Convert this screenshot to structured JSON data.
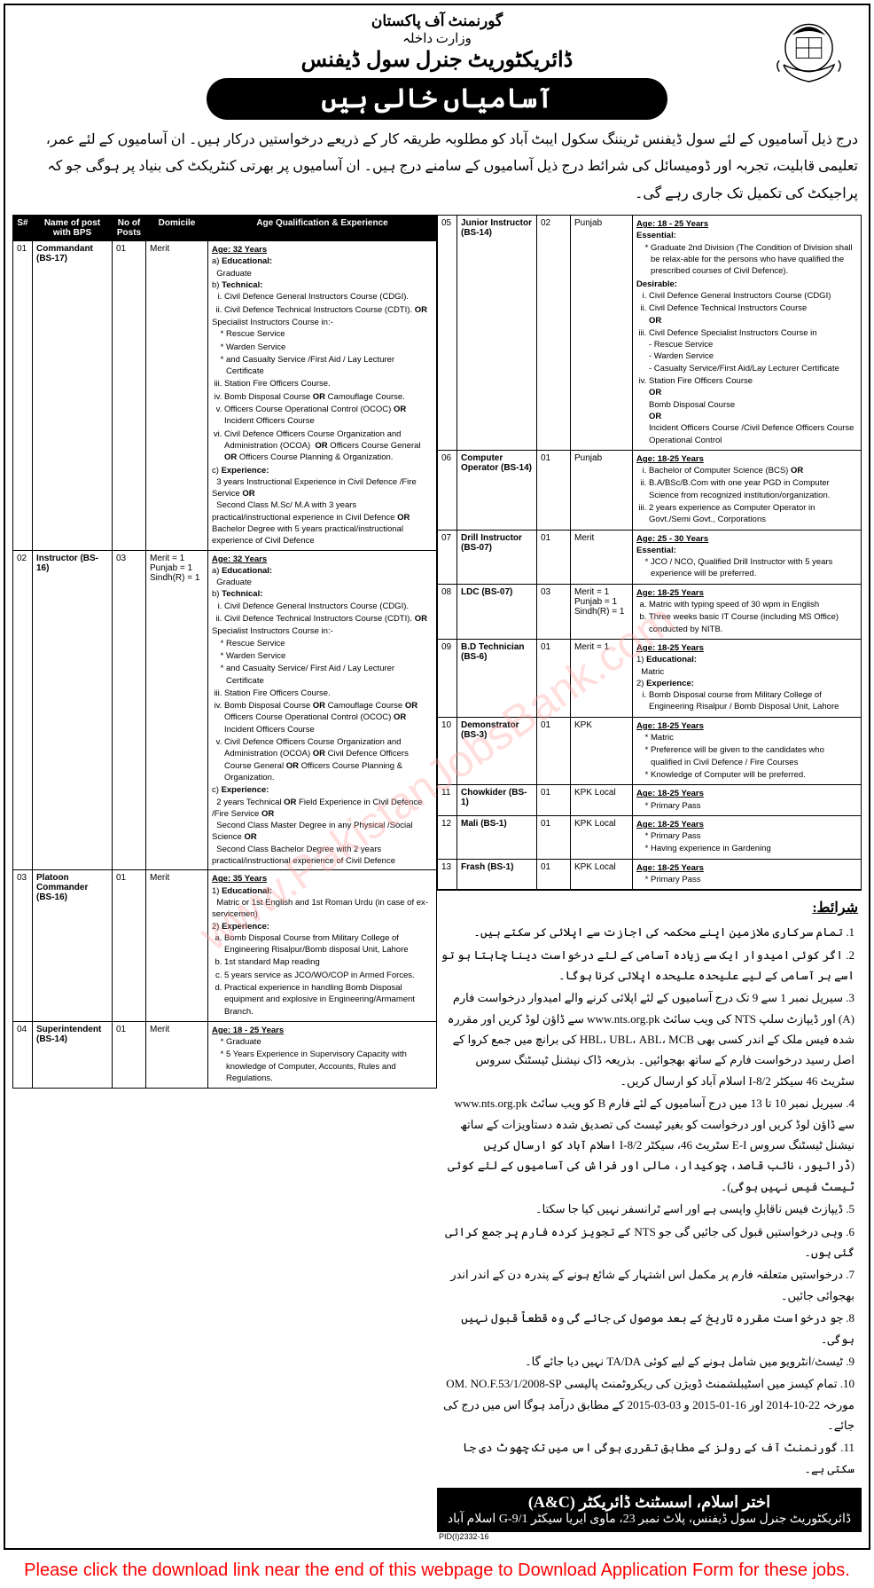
{
  "watermark": "www.PakistanJobsBank.com",
  "header": {
    "govt": "گورنمنٹ آف پاکستان",
    "ministry": "وزارت داخلہ",
    "directorate": "ڈائریکٹوریٹ جنرل سول ڈیفنس",
    "banner": "آسامیاں خالی ہیں"
  },
  "intro": "درج ذیل آسامیوں کے لئے سول ڈیفنس ٹریننگ سکول ایبٹ آباد کو مطلوبہ طریقہ کار کے ذریعے درخواستیں درکار ہیں۔ ان آسامیوں کے لئے عمر، تعلیمی قابلیت، تجربہ اور ڈومیسائل کی شرائط درج ذیل آسامیوں کے سامنے درج ہیں۔ ان آسامیوں پر بھرتی کنٹریکٹ کی بنیاد پر ہوگی جو کہ پراجیکٹ کی تکمیل تک جاری رہے گی۔",
  "table_headers": {
    "sn": "S#",
    "post": "Name of post with BPS",
    "num": "No of Posts",
    "dom": "Domicile",
    "qual": "Age Qualification & Experience"
  },
  "jobs_left": [
    {
      "sn": "01",
      "post": "Commandant (BS-17)",
      "num": "01",
      "dom": "Merit",
      "qual": "<span class='age'>Age: 32 Years</span><br>a) <span class='hd'>Educational:</span><br>&nbsp;&nbsp;Graduate<br>b) <span class='hd'>Technical:</span><ol type='i'><li>Civil Defence General Instructors Course (CDGI).</li><li>Civil Defence Technical Instructors Course (CDTI). <b>OR</b></li></ol>Specialist Instructors Course in:-<ul class='sub'><li>Rescue Service</li><li>Warden Service</li><li>and Casualty Service /First Aid / Lay Lecturer Certificate</li></ul><ol type='i' start='3'><li>Station Fire Officers Course.</li><li>Bomb Disposal Course <b>OR</b> Camouflage Course.</li><li>Officers Course Operational Control (OCOC) <b>OR</b> Incident Officers Course</li><li>Civil Defence Officers Course Organization and Administration (OCOA) &nbsp;<b>OR</b> Officers Course General <b>OR</b> Officers Course Planning & Organization.</li></ol>c) <span class='hd'>Experience:</span><br>&nbsp;&nbsp;3 years Instructional Experience in Civil Defence /Fire Service <b>OR</b><br>&nbsp;&nbsp;Second Class M.Sc/ M.A with 3 years practical/instructional experience in Civil Defence <b>OR</b> Bachelor Degree with 5 years practical/instructional experience of Civil Defence"
    },
    {
      "sn": "02",
      "post": "Instructor (BS-16)",
      "num": "03",
      "dom": "<div class='dom-lines'><div>Merit = 1</div><div>Punjab = 1</div><div>Sindh(R) = 1</div></div>",
      "qual": "<span class='age'>Age: 32 Years</span><br>a) <span class='hd'>Educational:</span><br>&nbsp;&nbsp;Graduate<br>b) <span class='hd'>Technical:</span><ol type='i'><li>Civil Defence General Instructors Course (CDGI).</li><li>Civil Defence Technical Instructors Course (CDTI). <b>OR</b></li></ol>Specialist Instructors Course in:-<ul class='sub'><li>Rescue Service</li><li>Warden Service</li><li>and Casualty Service/ First Aid / Lay Lecturer Certificate</li></ul><ol type='i' start='3'><li>Station Fire Officers Course.</li><li>Bomb Disposal Course <b>OR</b> Camouflage Course <b>OR</b> Officers Course Operational Control (OCOC) <b>OR</b> Incident Officers Course</li><li>Civil Defence Officers Course Organization and Administration (OCOA) <b>OR</b> Civil Defence Officers Course General <b>OR</b> Officers Course Planning & Organization.</li></ol>c) <span class='hd'>Experience:</span><br>&nbsp;&nbsp;2 years Technical <b>OR</b> Field Experience in Civil Defence /Fire Service <b>OR</b><br>&nbsp;&nbsp;Second Class Master Degree in any Physical /Social Science <b>OR</b><br>&nbsp;&nbsp;Second Class Bachelor Degree with 2 years practical/instructional experience of Civil Defence"
    },
    {
      "sn": "03",
      "post": "Platoon Commander (BS-16)",
      "num": "01",
      "dom": "Merit",
      "qual": "<span class='age'>Age: 35 Years</span><br>1) <span class='hd'>Educational:</span><br>&nbsp;&nbsp;Matric or 1st English and 1st Roman Urdu (in case of ex-servicemen)<br>2) <span class='hd'>Experience:</span><ol type='a'><li>Bomb Disposal Course from Military College of Engineering Risalpur/Bomb disposal Unit, Lahore</li><li>1st standard Map reading</li><li>5 years service as JCO/WO/COP in Armed Forces.</li><li>Practical experience in handling Bomb Disposal equipment and explosive in Engineering/Armament Branch.</li></ol>"
    },
    {
      "sn": "04",
      "post": "Superintendent (BS-14)",
      "num": "01",
      "dom": "Merit",
      "qual": "<span class='age'>Age: 18 - 25 Years</span><ul class='sub'><li>Graduate</li><li>5 Years Experience in Supervisory Capacity with knowledge of Computer, Accounts, Rules and Regulations.</li></ul>"
    }
  ],
  "jobs_right": [
    {
      "sn": "05",
      "post": "Junior Instructor (BS-14)",
      "num": "02",
      "dom": "Punjab",
      "qual": "<span class='age'>Age: 18 - 25 Years</span><br><span class='hd'>Essential:</span><ul class='sub'><li>Graduate 2nd Division (The Condition of Division shall be relax-able for the persons who have qualified the prescribed courses of Civil Defence).</li></ul><span class='hd'>Desirable:</span><ol type='i'><li>Civil Defence General Instructors Course (CDGI)</li><li>Civil Defence Technical Instructors Course<br><b>OR</b></li><li>Civil Defence Specialist Instructors Course in<br>- Rescue Service<br>- Warden Service<br>- Casualty Service/First Aid/Lay Lecturer Certificate</li><li>Station Fire Officers Course<br><b>OR</b><br>Bomb Disposal Course<br><b>OR</b><br>Incident Officers Course /Civil Defence Officers Course Operational Control</li></ol>"
    },
    {
      "sn": "06",
      "post": "Computer Operator (BS-14)",
      "num": "01",
      "dom": "Punjab",
      "qual": "<span class='age'>Age: 18-25 Years</span><ol type='i'><li>Bachelor of Computer Science (BCS) <b>OR</b></li><li>B.A/BSc/B.Com with one year PGD in Computer Science from recognized institution/organization.</li><li>2 years experience as Computer Operator in Govt./Semi Govt., Corporations</li></ol>"
    },
    {
      "sn": "07",
      "post": "Drill Instructor (BS-07)",
      "num": "01",
      "dom": "Merit",
      "qual": "<span class='age'>Age: 25 - 30 Years</span><br><span class='hd'>Essential:</span><ul class='sub'><li>JCO / NCO, Qualified Drill Instructor with 5 years experience will be preferred.</li></ul>"
    },
    {
      "sn": "08",
      "post": "LDC (BS-07)",
      "num": "03",
      "dom": "<div class='dom-lines'><div>Merit = 1</div><div>Punjab = 1</div><div>Sindh(R) = 1</div></div>",
      "qual": "<span class='age'>Age: 18-25 Years</span><ol type='a'><li>Matric with typing speed of 30 wpm in English</li><li>Three weeks basic IT Course (including MS Office) conducted by NITB.</li></ol>"
    },
    {
      "sn": "09",
      "post": "B.D Technician (BS-6)",
      "num": "01",
      "dom": "Merit = 1",
      "qual": "<span class='age'>Age: 18-25 Years</span><br>1) <span class='hd'>Educational:</span><br>&nbsp;&nbsp;Matric<br>2) <span class='hd'>Experience:</span><ol type='i'><li>Bomb Disposal course from Military College of Engineering Risalpur / Bomb Disposal Unit, Lahore</li></ol>"
    },
    {
      "sn": "10",
      "post": "Demonstrator (BS-3)",
      "num": "01",
      "dom": "KPK",
      "qual": "<span class='age'>Age: 18-25 Years</span><ul class='sub'><li>Matric</li><li>Preference will be given to the candidates who qualified in Civil Defence / Fire Courses</li><li>Knowledge of Computer will be preferred.</li></ul>"
    },
    {
      "sn": "11",
      "post": "Chowkider (BS-1)",
      "num": "01",
      "dom": "KPK Local",
      "qual": "<span class='age'>Age: 18-25 Years</span><ul class='sub'><li>Primary Pass</li></ul>"
    },
    {
      "sn": "12",
      "post": "Mali (BS-1)",
      "num": "01",
      "dom": "KPK Local",
      "qual": "<span class='age'>Age: 18-25 Years</span><ul class='sub'><li>Primary Pass</li><li>Having experience in Gardening</li></ul>"
    },
    {
      "sn": "13",
      "post": "Frash (BS-1)",
      "num": "01",
      "dom": "KPK Local",
      "qual": "<span class='age'>Age: 18-25 Years</span><ul class='sub'><li>Primary Pass</li></ul>"
    }
  ],
  "conditions": {
    "heading": "شرائط:",
    "items": [
      "تمام سرکاری ملازمین اپنے محکمہ کی اجازت سے اپلائی کر سکتے ہیں۔",
      "اگر کوئی امیدوار ایک سے زیادہ آسامی کے لئے درخواست دینا چاہتا ہو تو اسے ہر آسامی کے لیے علیحدہ علیحدہ اپلائی کرنا ہوگا۔",
      "سیریل نمبر 1 سے 9 تک درج آسامیوں کے لئے اپلائی کرنے والے امیدوار درخواست فارم (A) اور ڈیپازٹ سلپ NTS کی ویب سائٹ www.nts.org.pk سے ڈاؤن لوڈ کریں اور مقررہ شدہ فیس ملک کے اندر کسی بھی HBL، UBL، ABL، MCB کی برانچ میں جمع کروا کے اصل رسید درخواست فارم کے ساتھ بھجوائیں۔ بذریعہ ڈاک نیشنل ٹیسٹنگ سروس سٹریٹ 46 سیکٹر 2/I-8 اسلام آباد کو ارسال کریں۔",
      "سیریل نمبر 10 تا 13 میں درج آسامیوں کے لئے فارم B کو ویب سائٹ www.nts.org.pk سے ڈاؤن لوڈ کریں اور درخواست کو بغیر ٹیسٹ کی تصدیق شدہ دستاویزات کے ساتھ نیشنل ٹیسٹنگ سروس E-I سٹریٹ 46، سیکٹر 2/I-8 اسلام آباد کو ارسال کریں (ڈرائیور، نائب قاصد، چوکیدار، مالی اور فراش کی آسامیوں کے لئے کوئی ٹیسٹ فیس نہیں ہوگی)۔",
      "ڈیپازٹ فیس ناقابلِ واپسی ہے اور اسے ٹرانسفر نہیں کیا جا سکتا۔",
      "وہی درخواستیں قبول کی جائیں گی جو NTS کے تجویز کردہ فارم پر جمع کرائی گئی ہوں۔",
      "درخواستیں متعلقہ فارم پر مکمل اس اشتہار کے شائع ہونے کے پندرہ دن کے اندر اندر بھجوائی جائیں۔",
      "جو درخواست مقررہ تاریخ کے بعد موصول کی جائے گی وہ قطعاً قبول نہیں ہوگی۔",
      "ٹیسٹ/انٹرویو میں شامل ہونے کے لیے کوئی TA/DA نہیں دیا جائے گا۔",
      "تمام کیسز میں اسٹیبلشمنٹ ڈویژن کی ریکروٹمنٹ پالیسی OM. NO.F.53/1/2008-SP مورخہ 22-10-2014 اور 16-01-2015 و 03-03-2015 کے مطابق درآمد ہوگا اس میں درج کی جائے۔",
      "گورنمنٹ آف کے رولز کے مطابق تقرری ہوگی اس میں تک چھوٹ دی جا سکتی ہے۔"
    ]
  },
  "footer": {
    "signatory": "اختر اسلام، اسسٹنٹ ڈائریکٹر (A&C)",
    "address": "ڈائریکٹوریٹ جنرل سول ڈیفنس، پلاٹ نمبر 23، ماوی ایریا سیکٹر G-9/1 اسلام آباد"
  },
  "pid": "PID(I)2332-16",
  "download_note": "Please click the download link near the end of this webpage to Download Application Form for these jobs."
}
